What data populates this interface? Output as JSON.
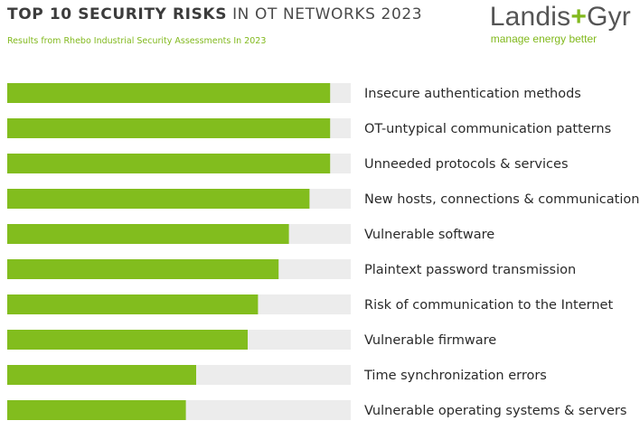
{
  "header": {
    "title_bold": "TOP 10 SECURITY RISKS",
    "title_rest": " IN OT NETWORKS 2023",
    "subtitle": "Results from Rhebo Industrial Security Assessments In 2023"
  },
  "logo": {
    "name_left": "Landis",
    "name_plus": "+",
    "name_right": "Gyr",
    "tagline": "manage energy better"
  },
  "colors": {
    "accent": "#82bd1e",
    "track": "#ececec",
    "text": "#2a2a2a"
  },
  "chart_data": {
    "type": "bar",
    "orientation": "horizontal",
    "categories": [
      "Insecure authentication methods",
      "OT-untypical communication patterns",
      "Unneeded protocols & services",
      "New hosts, connections & communication",
      "Vulnerable software",
      "Plaintext password transmission",
      "Risk of communication to the Internet",
      "Vulnerable firmware",
      "Time synchronization errors",
      "Vulnerable operating systems & servers"
    ],
    "values": [
      94,
      94,
      94,
      88,
      82,
      79,
      73,
      70,
      55,
      52
    ],
    "xlim": [
      0,
      100
    ],
    "grid": false,
    "legend": "none"
  }
}
